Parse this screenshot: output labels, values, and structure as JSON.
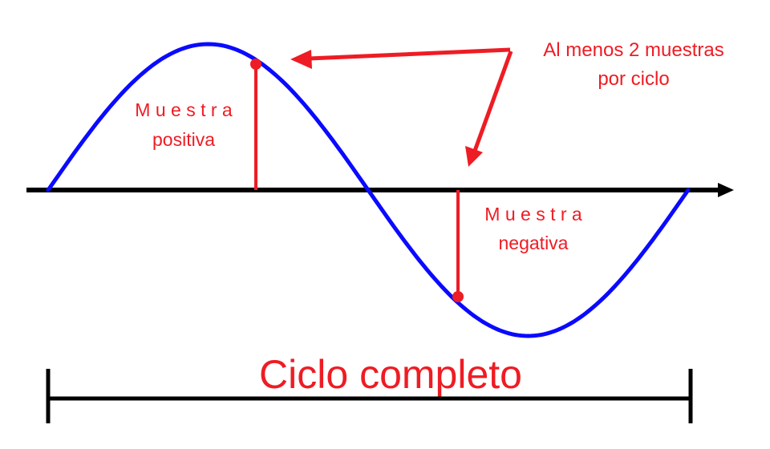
{
  "annotation": {
    "line1": "Al menos 2 muestras",
    "line2": "por ciclo"
  },
  "positive_sample": {
    "line1": "M u e s t r a",
    "line2": "positiva"
  },
  "negative_sample": {
    "line1": "M u e s t r a",
    "line2": "negativa"
  },
  "cycle_label": "Ciclo completo",
  "colors": {
    "wave": "#0a0aff",
    "axis": "#000000",
    "accent": "#ee1c24",
    "bracket": "#000000"
  }
}
